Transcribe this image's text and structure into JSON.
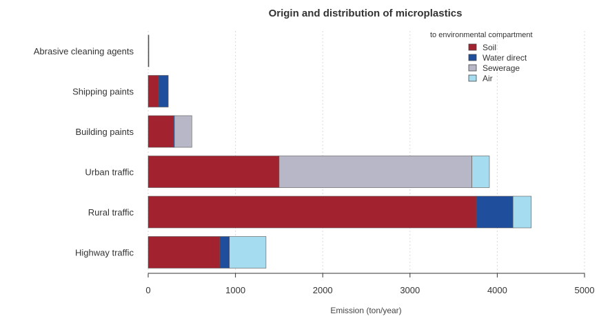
{
  "chart_data": {
    "type": "bar",
    "orientation": "horizontal",
    "stacked": true,
    "title": "Origin and distribution of microplastics",
    "xlabel": "Emission (ton/year)",
    "ylabel": "",
    "xlim": [
      0,
      5000
    ],
    "xticks": [
      "0",
      "1000",
      "2000",
      "3000",
      "4000",
      "5000"
    ],
    "grid": true,
    "legend_position": "top-right",
    "legend_title": "to environmental compartment",
    "categories": [
      "Abrasive cleaning agents",
      "Shipping paints",
      "Building paints",
      "Urban traffic",
      "Rural traffic",
      "Highway traffic"
    ],
    "series": [
      {
        "name": "Soil",
        "color": "#a3222f",
        "values": [
          0,
          120,
          290,
          1500,
          3760,
          820
        ]
      },
      {
        "name": "Water direct",
        "color": "#1f4e9c",
        "values": [
          8,
          110,
          10,
          0,
          420,
          110
        ]
      },
      {
        "name": "Sewerage",
        "color": "#b7b7c7",
        "values": [
          0,
          0,
          200,
          2210,
          0,
          0
        ]
      },
      {
        "name": "Air",
        "color": "#a5dcf0",
        "values": [
          0,
          0,
          0,
          200,
          210,
          420
        ]
      }
    ]
  }
}
